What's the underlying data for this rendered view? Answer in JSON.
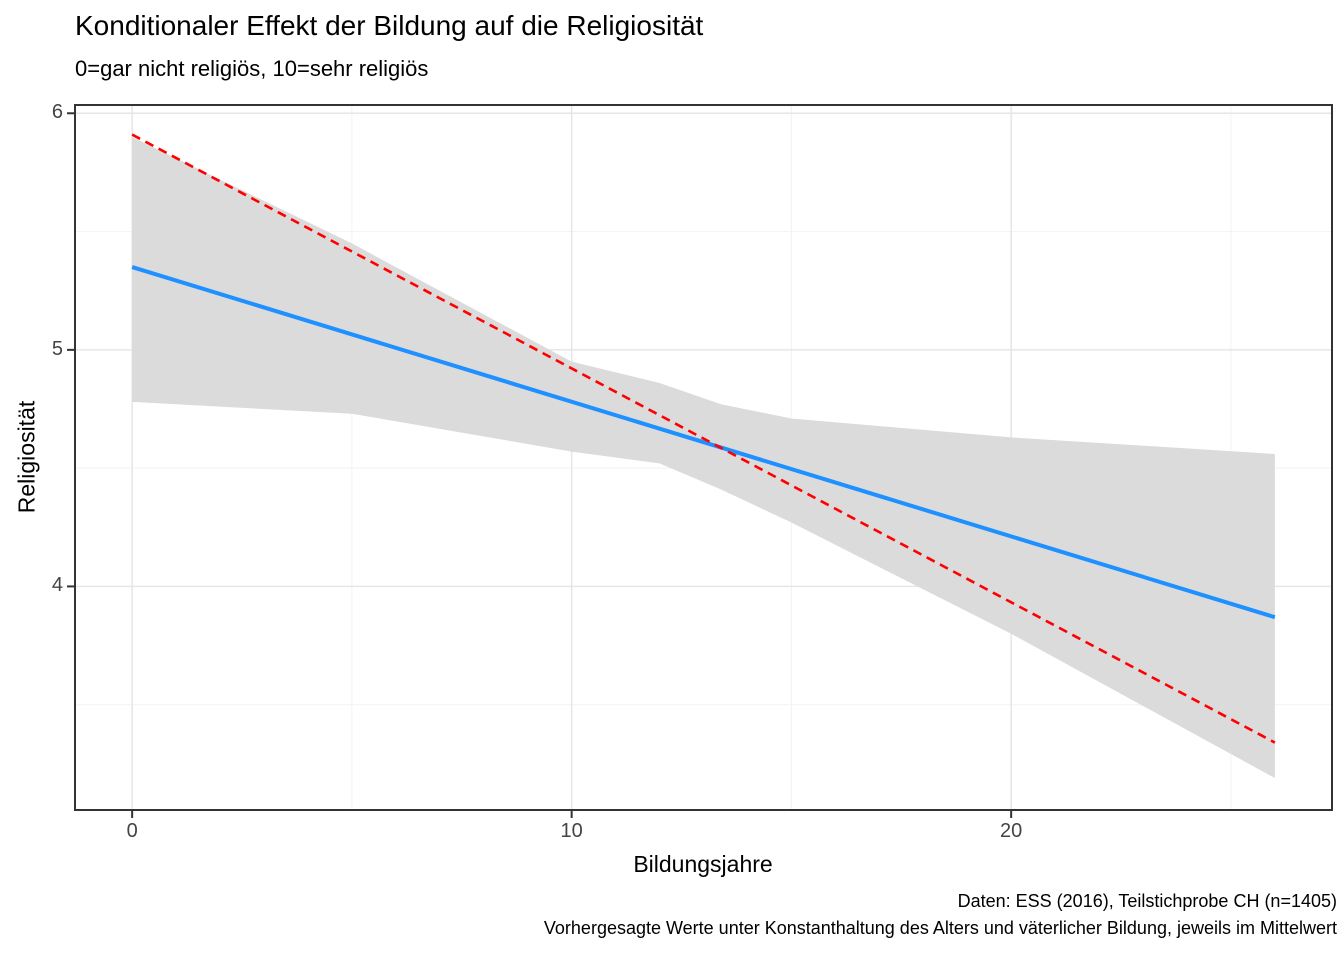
{
  "chart_data": {
    "type": "line",
    "title": "Konditionaler Effekt der Bildung auf die Religiosität",
    "subtitle": "0=gar nicht religiös, 10=sehr religiös",
    "caption_lines": [
      "Daten: ESS (2016), Teilstichprobe CH (n=1405)",
      "Vorhergesagte Werte unter Konstanthaltung des Alters und väterlicher Bildung, jeweils im Mittelwert"
    ],
    "xlabel": "Bildungsjahre",
    "ylabel": "Religiosität",
    "xlim": [
      -1.3,
      27.3
    ],
    "ylim": [
      3.055,
      6.035
    ],
    "x_major_ticks": [
      0,
      10,
      20
    ],
    "x_minor_ticks": [
      5,
      15,
      25
    ],
    "y_major_ticks": [
      4,
      5,
      6
    ],
    "y_minor_ticks": [
      3.5,
      4.5,
      5.5
    ],
    "grid": true,
    "legend": "none",
    "series": [
      {
        "name": "konditionaler-effekt-linie-blau-durchgezogen",
        "style": "solid",
        "color": "#1E90FF",
        "width": 4,
        "x": [
          0,
          26
        ],
        "y": [
          5.35,
          3.87
        ]
      },
      {
        "name": "vergleichs-linie-rot-gestrichelt",
        "style": "dashed",
        "color": "#FF0000",
        "width": 2.6,
        "x": [
          0,
          26
        ],
        "y": [
          5.91,
          3.34
        ]
      }
    ],
    "confidence_band": {
      "color": "#DBDBDB",
      "x": [
        0,
        5,
        10,
        12,
        13.4,
        15,
        20,
        26
      ],
      "upper": [
        5.9,
        5.45,
        4.95,
        4.86,
        4.77,
        4.71,
        4.63,
        4.56
      ],
      "lower": [
        4.78,
        4.73,
        4.57,
        4.52,
        4.41,
        4.27,
        3.8,
        3.19
      ]
    },
    "colors": {
      "background": "#FFFFFF",
      "grid_major": "#E6E6E6",
      "grid_minor": "#F2F2F2",
      "panel_border": "#333333",
      "tick_mark": "#333333",
      "tick_label": "#444444",
      "text": "#000000"
    }
  }
}
